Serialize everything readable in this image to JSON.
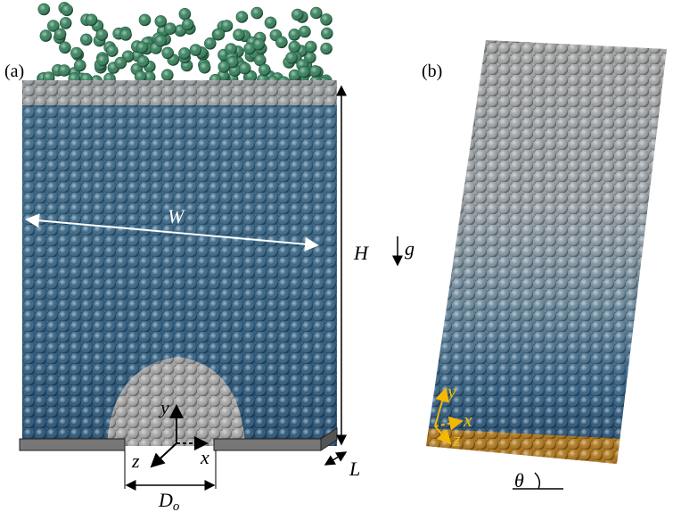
{
  "panel_a": {
    "label": "(a)",
    "width_label": "W",
    "height_label": "H",
    "depth_label": "L",
    "orifice_label": "D",
    "orifice_subscript": "o",
    "axes": [
      "x",
      "y",
      "z"
    ]
  },
  "gravity_label": "g",
  "panel_b": {
    "label": "(b)",
    "axes": [
      "x",
      "y",
      "z"
    ],
    "angle_label": "θ"
  }
}
